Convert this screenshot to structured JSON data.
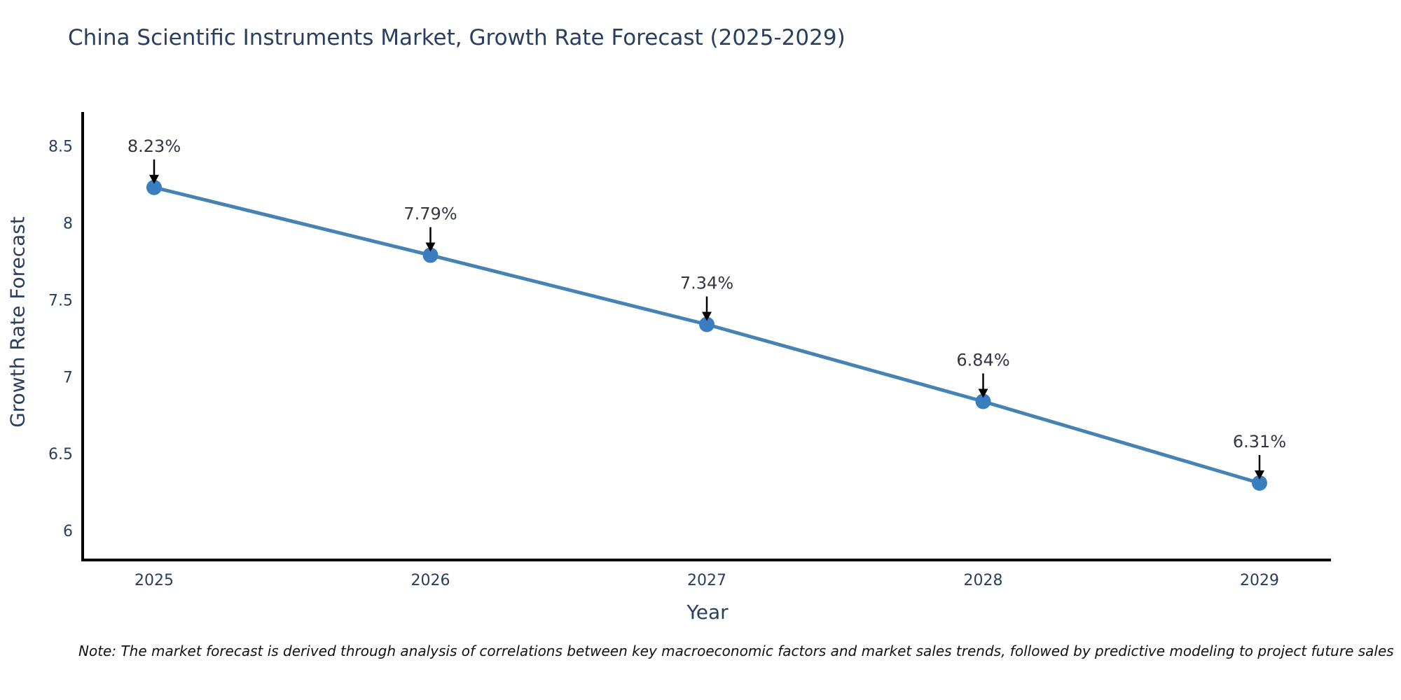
{
  "title": "China Scientific Instruments Market, Growth Rate Forecast (2025-2029)",
  "note": "Note: The market forecast is derived through analysis of correlations between key macroeconomic factors and market sales trends, followed by predictive modeling to project future sales",
  "chart_data": {
    "type": "line",
    "title": "China Scientific Instruments Market, Growth Rate Forecast (2025-2029)",
    "xlabel": "Year",
    "ylabel": "Growth Rate Forecast",
    "categories": [
      "2025",
      "2026",
      "2027",
      "2028",
      "2029"
    ],
    "series": [
      {
        "name": "Growth Rate Forecast (%)",
        "values": [
          8.23,
          7.79,
          7.34,
          6.84,
          6.31
        ],
        "point_labels": [
          "8.23%",
          "7.79%",
          "7.34%",
          "6.84%",
          "6.31%"
        ]
      }
    ],
    "y_ticks": [
      6,
      6.5,
      7,
      7.5,
      8,
      8.5
    ],
    "ylim": [
      5.81,
      8.72
    ],
    "grid": false,
    "legend_position": "none",
    "annotations_style": "value label with black down-arrow pointing at each marker",
    "colors": {
      "line": "#4682b4",
      "marker": "#3a7ebf",
      "axis": "#000000",
      "tick_label": "#2a3f5f",
      "annotation_text": "#333745",
      "arrow": "#000000",
      "title": "#2a3f5f",
      "background": "#ffffff"
    }
  }
}
